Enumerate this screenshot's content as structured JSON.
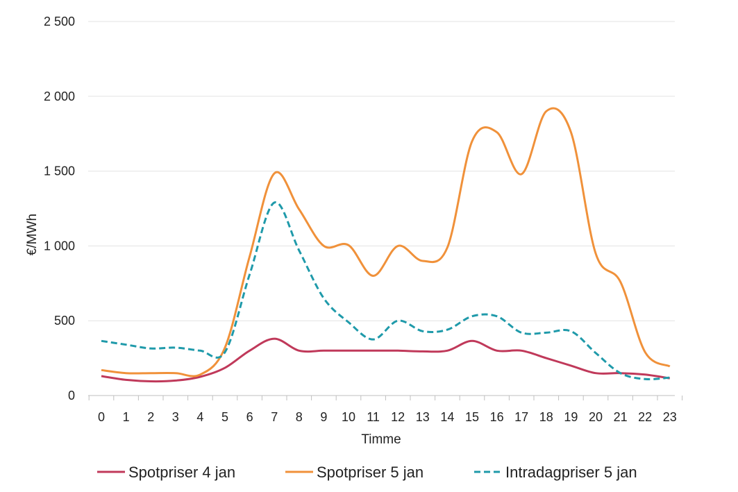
{
  "chart_data": {
    "type": "line",
    "title": "",
    "xlabel": "Timme",
    "ylabel": "€/MWh",
    "x": [
      0,
      1,
      2,
      3,
      4,
      5,
      6,
      7,
      8,
      9,
      10,
      11,
      12,
      13,
      14,
      15,
      16,
      17,
      18,
      19,
      20,
      21,
      22,
      23
    ],
    "x_tick_labels": [
      "0",
      "1",
      "2",
      "3",
      "4",
      "5",
      "6",
      "7",
      "8",
      "9",
      "10",
      "11",
      "12",
      "13",
      "14",
      "15",
      "16",
      "17",
      "18",
      "19",
      "20",
      "21",
      "22",
      "23"
    ],
    "ylim": [
      0,
      2500
    ],
    "y_ticks": [
      0,
      500,
      1000,
      1500,
      2000,
      2500
    ],
    "y_tick_labels": [
      "0",
      "500",
      "1 000",
      "1 500",
      "2 000",
      "2 500"
    ],
    "grid": "horizontal",
    "legend_position": "bottom",
    "series": [
      {
        "name": "Spotpriser 4 jan",
        "color": "#c0395a",
        "style": "solid",
        "values": [
          130,
          105,
          95,
          100,
          125,
          185,
          300,
          380,
          300,
          300,
          300,
          300,
          300,
          295,
          300,
          365,
          300,
          300,
          250,
          200,
          150,
          150,
          140,
          115
        ]
      },
      {
        "name": "Spotpriser 5 jan",
        "color": "#f0913a",
        "style": "solid",
        "values": [
          170,
          150,
          150,
          150,
          140,
          320,
          930,
          1485,
          1245,
          1000,
          1005,
          800,
          1000,
          900,
          990,
          1700,
          1760,
          1480,
          1900,
          1760,
          950,
          760,
          290,
          195
        ]
      },
      {
        "name": "Intradagpriser 5 jan",
        "color": "#1f9aaa",
        "style": "dashed",
        "values": [
          365,
          340,
          315,
          320,
          300,
          290,
          810,
          1290,
          970,
          650,
          490,
          375,
          500,
          430,
          440,
          530,
          530,
          420,
          420,
          430,
          285,
          150,
          110,
          120
        ]
      }
    ]
  }
}
